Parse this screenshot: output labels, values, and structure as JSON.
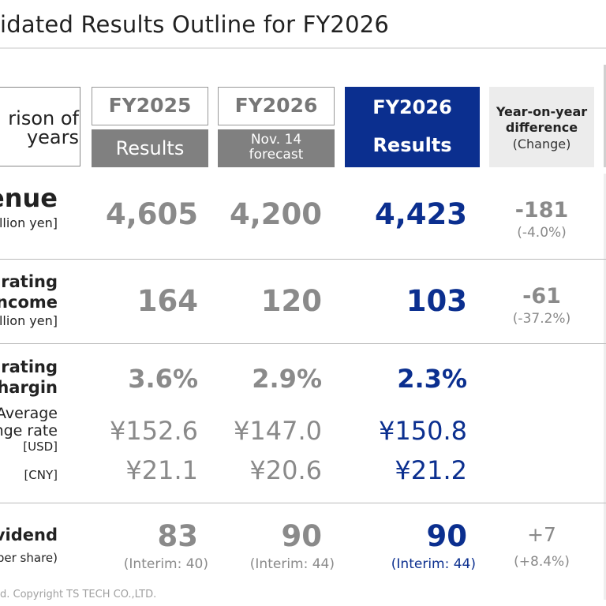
{
  "title": "idated Results Outline for FY2026",
  "comparison_label_line1": "rison of",
  "comparison_label_line2": "years",
  "columns": {
    "fy2025": {
      "year": "FY2025",
      "sub": "Results"
    },
    "fy2026_forecast": {
      "year": "FY2026",
      "sub_line1": "Nov. 14",
      "sub_line2": "forecast"
    },
    "fy2026_results": {
      "year": "FY2026",
      "sub": "Results"
    },
    "yoy": {
      "line1": "Year-on-year",
      "line2": "difference",
      "line3": "(Change)"
    }
  },
  "rows": {
    "revenue": {
      "label": "enue",
      "unit": "llion yen]",
      "fy2025": "4,605",
      "forecast": "4,200",
      "results": "4,423",
      "yoy_value": "-181",
      "yoy_change": "(-4.0%)"
    },
    "operating_income": {
      "label_line1": "rating",
      "label_line2": "ncome",
      "unit": "llion yen]",
      "fy2025": "164",
      "forecast": "120",
      "results": "103",
      "yoy_value": "-61",
      "yoy_change": "(-37.2%)"
    },
    "operating_margin": {
      "label_line1": "rating",
      "label_line2": "hargin",
      "fy2025": "3.6%",
      "forecast": "2.9%",
      "results": "2.3%"
    },
    "exchange_rate": {
      "label_line1": "Average",
      "label_line2": "nge rate",
      "usd_label": "[USD]",
      "cny_label": "[CNY]",
      "usd": {
        "fy2025": "¥152.6",
        "forecast": "¥147.0",
        "results": "¥150.8"
      },
      "cny": {
        "fy2025": "¥21.1",
        "forecast": "¥20.6",
        "results": "¥21.2"
      }
    },
    "dividend": {
      "label": "vidend",
      "unit": "per share)",
      "fy2025": "83",
      "forecast": "90",
      "results": "90",
      "fy2025_interim": "(Interim: 40)",
      "forecast_interim": "(Interim: 44)",
      "results_interim": "(Interim: 44)",
      "yoy_value": "+7",
      "yoy_change": "(+8.4%)"
    }
  },
  "footer": "d. Copyright TS TECH CO.,LTD."
}
